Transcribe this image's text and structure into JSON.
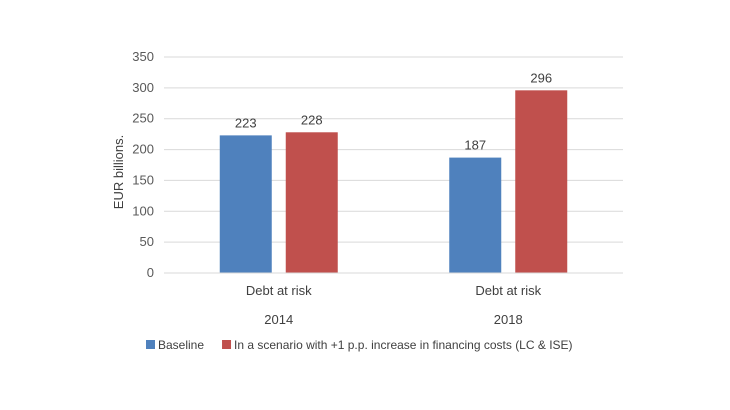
{
  "chart_data": {
    "type": "bar",
    "title": "",
    "ylabel": "EUR billions.",
    "ylim": [
      0,
      350
    ],
    "yticks": [
      0,
      50,
      100,
      150,
      200,
      250,
      300,
      350
    ],
    "grid": true,
    "legend_position": "bottom",
    "categories": [
      {
        "label": "Debt at risk",
        "group": "2014"
      },
      {
        "label": "Debt at risk",
        "group": "2018"
      }
    ],
    "series": [
      {
        "name": "Baseline",
        "color": "#4f81bd",
        "values": [
          223,
          187
        ]
      },
      {
        "name": "In a scenario with +1 p.p. increase in financing costs (LC & ISE)",
        "color": "#c0504d",
        "values": [
          228,
          296
        ]
      }
    ]
  }
}
